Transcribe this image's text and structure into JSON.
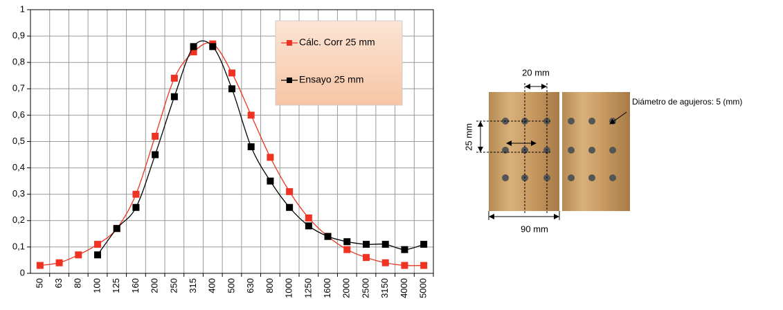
{
  "chart_data": {
    "type": "line",
    "categories": [
      "50",
      "63",
      "80",
      "100",
      "125",
      "160",
      "200",
      "250",
      "315",
      "400",
      "500",
      "630",
      "800",
      "1000",
      "1250",
      "1600",
      "2000",
      "2500",
      "3150",
      "4000",
      "5000"
    ],
    "series": [
      {
        "name": "Cálc. Corr 25 mm",
        "color": "#ee3322",
        "values": [
          0.03,
          0.04,
          0.07,
          0.11,
          0.17,
          0.3,
          0.52,
          0.74,
          0.84,
          0.87,
          0.76,
          0.6,
          0.44,
          0.31,
          0.21,
          0.14,
          0.09,
          0.06,
          0.04,
          0.03,
          0.03
        ]
      },
      {
        "name": "Ensayo 25 mm",
        "color": "#000000",
        "values": [
          null,
          null,
          null,
          0.07,
          0.17,
          0.25,
          0.45,
          0.67,
          0.86,
          0.86,
          0.7,
          0.48,
          0.35,
          0.25,
          0.18,
          0.14,
          0.12,
          0.11,
          0.11,
          0.09,
          0.11
        ]
      }
    ],
    "ylim": [
      0,
      1
    ],
    "yticks": [
      0,
      {
        "value": 0.1,
        "label": "0,1"
      },
      {
        "value": 0.2,
        "label": "0,2"
      },
      {
        "value": 0.3,
        "label": "0,3"
      },
      {
        "value": 0.4,
        "label": "0,4"
      },
      {
        "value": 0.5,
        "label": "0,5"
      },
      {
        "value": 0.6,
        "label": "0,6"
      },
      {
        "value": 0.7,
        "label": "0,7"
      },
      {
        "value": 0.8,
        "label": "0,8"
      },
      {
        "value": 0.9,
        "label": "0,9"
      },
      1
    ],
    "grid": true,
    "annotations": [
      "20 mm",
      "25 mm",
      "90 mm",
      "Diámetro de agujeros: 5 (mm)"
    ]
  }
}
